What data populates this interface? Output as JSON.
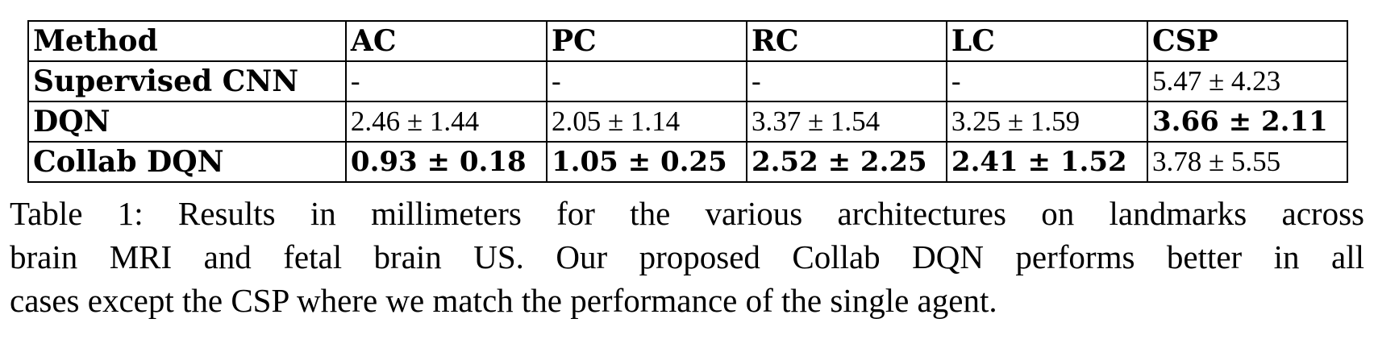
{
  "table": {
    "columns": [
      "Method",
      "AC",
      "PC",
      "RC",
      "LC",
      "CSP"
    ],
    "rows": [
      {
        "method": "Supervised CNN",
        "cells": [
          "-",
          "-",
          "-",
          "-",
          "5.47 ± 4.23"
        ],
        "bold": [
          false,
          false,
          false,
          false,
          false
        ]
      },
      {
        "method": "DQN",
        "cells": [
          "2.46 ± 1.44",
          "2.05 ± 1.14",
          "3.37 ± 1.54",
          "3.25 ± 1.59",
          "3.66 ± 2.11"
        ],
        "bold": [
          false,
          false,
          false,
          false,
          true
        ]
      },
      {
        "method": "Collab DQN",
        "cells": [
          "0.93 ± 0.18",
          "1.05 ± 0.25",
          "2.52 ± 2.25",
          "2.41 ± 1.52",
          "3.78 ± 5.55"
        ],
        "bold": [
          true,
          true,
          true,
          true,
          false
        ]
      }
    ]
  },
  "caption": {
    "lines": [
      "Table 1: Results in millimeters for the various architectures on landmarks across",
      "brain MRI and fetal brain US. Our proposed Collab DQN performs better in all",
      "cases except the CSP where we match the performance of the single agent."
    ]
  }
}
